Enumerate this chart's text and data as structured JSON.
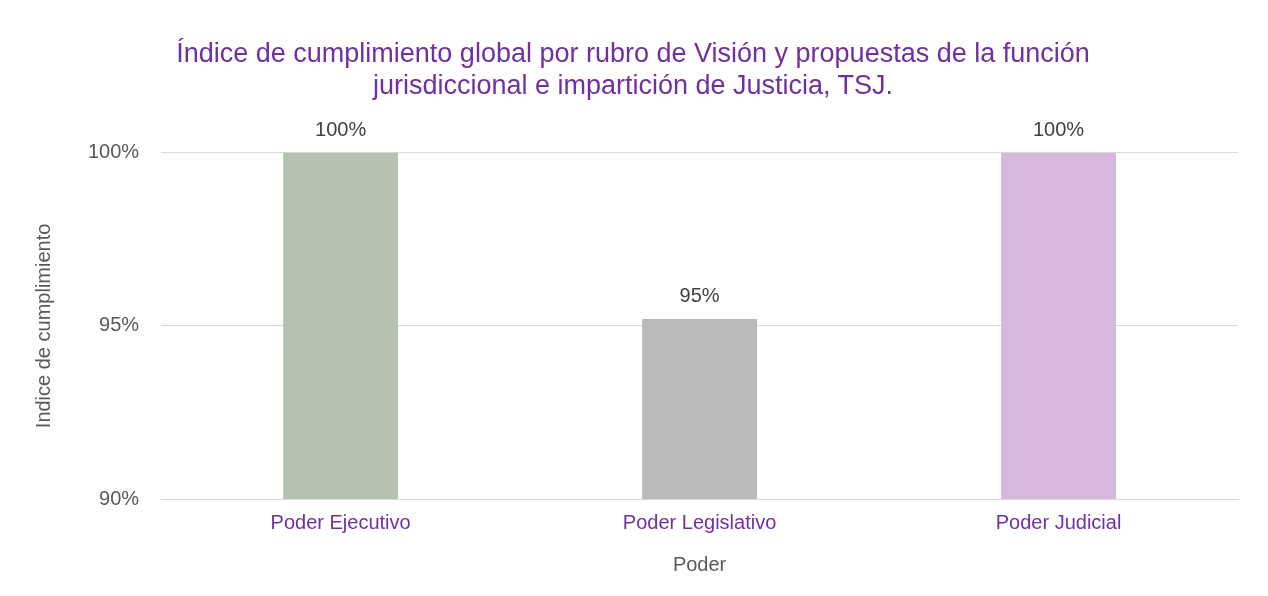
{
  "chart_data": {
    "type": "bar",
    "title": "Índice de cumplimiento global por rubro de Visión y propuestas de la función jurisdiccional e impartición de Justicia, TSJ.",
    "xlabel": "Poder",
    "ylabel": "Indice de cumplimiento",
    "categories": [
      "Poder Ejecutivo",
      "Poder Legislativo",
      "Poder Judicial"
    ],
    "values": [
      100,
      95.2,
      100
    ],
    "colors": [
      "#b5c2b0",
      "#bab9ba",
      "#d6b8dd"
    ],
    "value_labels": [
      "100%",
      "95%",
      "100%"
    ],
    "ylim": [
      90,
      100
    ],
    "yticks": [
      {
        "value": 90,
        "label": "90%"
      },
      {
        "value": 95,
        "label": "95%"
      },
      {
        "value": 100,
        "label": "100%"
      }
    ],
    "grid": "y",
    "legend": false
  }
}
